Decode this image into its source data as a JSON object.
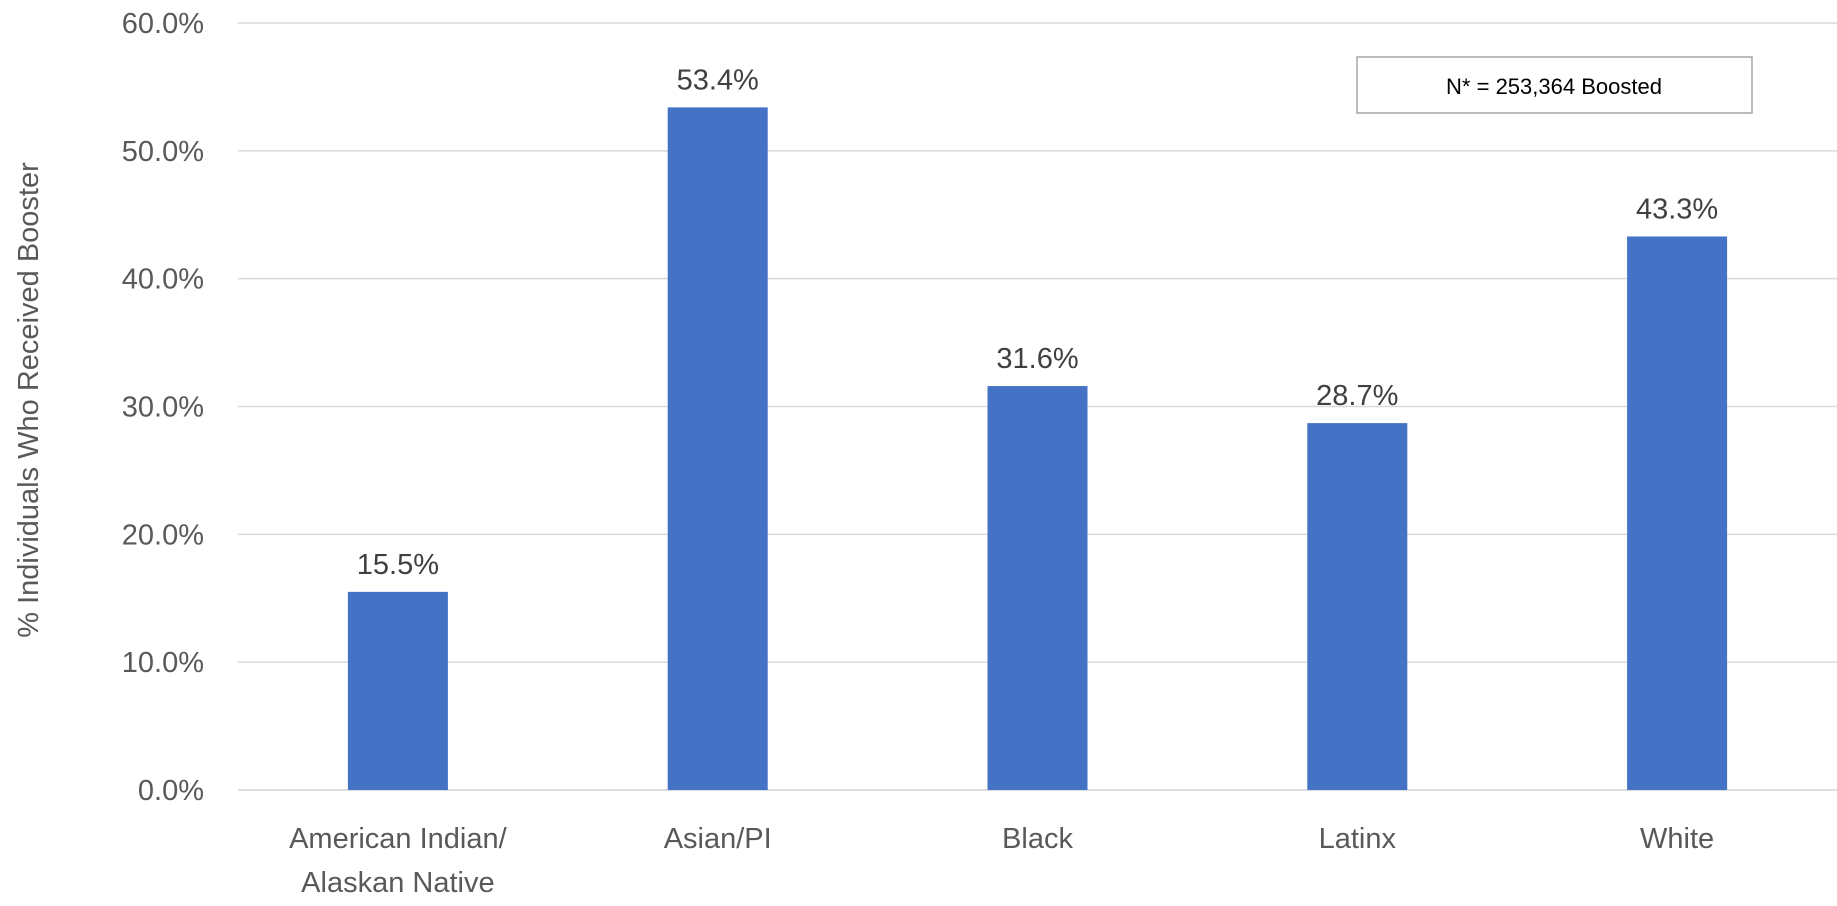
{
  "chart_data": {
    "type": "bar",
    "categories": [
      [
        "American Indian/",
        "Alaskan Native"
      ],
      [
        "Asian/PI"
      ],
      [
        "Black"
      ],
      [
        "Latinx"
      ],
      [
        "White"
      ]
    ],
    "values": [
      15.5,
      53.4,
      31.6,
      28.7,
      43.3
    ],
    "data_labels": [
      "15.5%",
      "53.4%",
      "31.6%",
      "28.7%",
      "43.3%"
    ],
    "title": "",
    "xlabel": "",
    "ylabel": "% Individuals Who Received Booster",
    "ylim": [
      0,
      60
    ],
    "yticks": [
      0,
      10,
      20,
      30,
      40,
      50,
      60
    ],
    "ytick_labels": [
      "0.0%",
      "10.0%",
      "20.0%",
      "30.0%",
      "40.0%",
      "50.0%",
      "60.0%"
    ],
    "grid": true,
    "annotation": "N* = 253,364 Boosted",
    "bar_color": "#4472C4",
    "grid_color": "#D9D9D9"
  }
}
